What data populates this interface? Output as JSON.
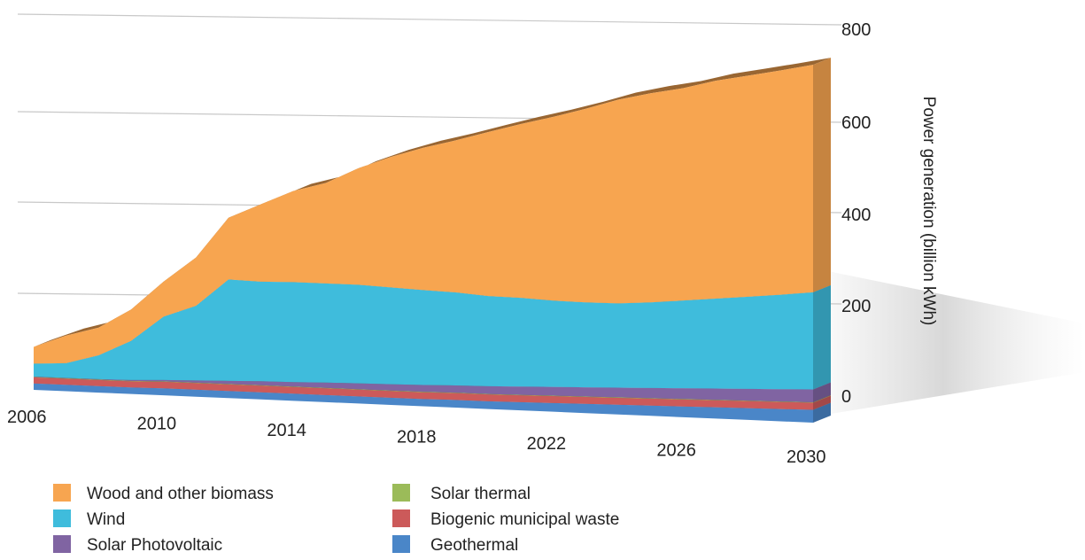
{
  "chart_data": {
    "type": "area",
    "stacked": true,
    "style": "3d",
    "title": "",
    "xlabel": "",
    "ylabel": "Power generation (billion kWh)",
    "ylim": [
      0,
      800
    ],
    "y_ticks": [
      0,
      200,
      400,
      600,
      800
    ],
    "x_ticks": [
      2006,
      2010,
      2014,
      2018,
      2022,
      2026,
      2030
    ],
    "x": [
      2006,
      2007,
      2008,
      2009,
      2010,
      2011,
      2012,
      2013,
      2014,
      2015,
      2016,
      2017,
      2018,
      2019,
      2020,
      2021,
      2022,
      2023,
      2024,
      2025,
      2026,
      2027,
      2028,
      2029,
      2030
    ],
    "grid": true,
    "legend_position": "bottom",
    "series": [
      {
        "name": "Geothermal",
        "color": "#4a86c8",
        "values": [
          15,
          15,
          15,
          15,
          16,
          16,
          16,
          16,
          16,
          16,
          16,
          16,
          16,
          17,
          17,
          18,
          19,
          20,
          21,
          22,
          23,
          24,
          25,
          26,
          27
        ]
      },
      {
        "name": "Biogenic municipal waste",
        "color": "#cc5a5a",
        "values": [
          14,
          14,
          14,
          14,
          15,
          15,
          15,
          15,
          15,
          15,
          15,
          15,
          15,
          15,
          15,
          15,
          15,
          15,
          15,
          15,
          15,
          15,
          15,
          15,
          15
        ]
      },
      {
        "name": "Solar thermal",
        "color": "#9bbb59",
        "values": [
          1,
          1,
          1,
          1,
          1,
          1,
          1,
          1,
          1,
          1,
          1,
          1,
          1,
          1,
          1,
          1,
          1,
          1,
          1,
          1,
          1,
          1,
          1,
          1,
          1
        ]
      },
      {
        "name": "Solar Photovoltaic",
        "color": "#8064a2",
        "values": [
          1,
          1,
          1,
          2,
          3,
          5,
          7,
          9,
          10,
          12,
          13,
          14,
          15,
          16,
          17,
          18,
          19,
          20,
          21,
          22,
          23,
          24,
          25,
          26,
          27
        ]
      },
      {
        "name": "Wind",
        "color": "#3fbcdc",
        "values": [
          30,
          34,
          55,
          90,
          145,
          170,
          230,
          225,
          225,
          222,
          220,
          215,
          210,
          205,
          198,
          194,
          188,
          184,
          182,
          184,
          188,
          192,
          196,
          200,
          205
        ]
      },
      {
        "name": "Wood and other biomass",
        "color": "#f7a550",
        "values": [
          39,
          64,
          64,
          72,
          80,
          110,
          140,
          175,
          205,
          225,
          260,
          290,
          315,
          335,
          360,
          380,
          400,
          420,
          440,
          450,
          455,
          465,
          470,
          475,
          480
        ]
      }
    ],
    "legend_order": [
      "Wood and other biomass",
      "Wind",
      "Solar Photovoltaic",
      "Solar thermal",
      "Biogenic municipal waste",
      "Geothermal"
    ]
  }
}
